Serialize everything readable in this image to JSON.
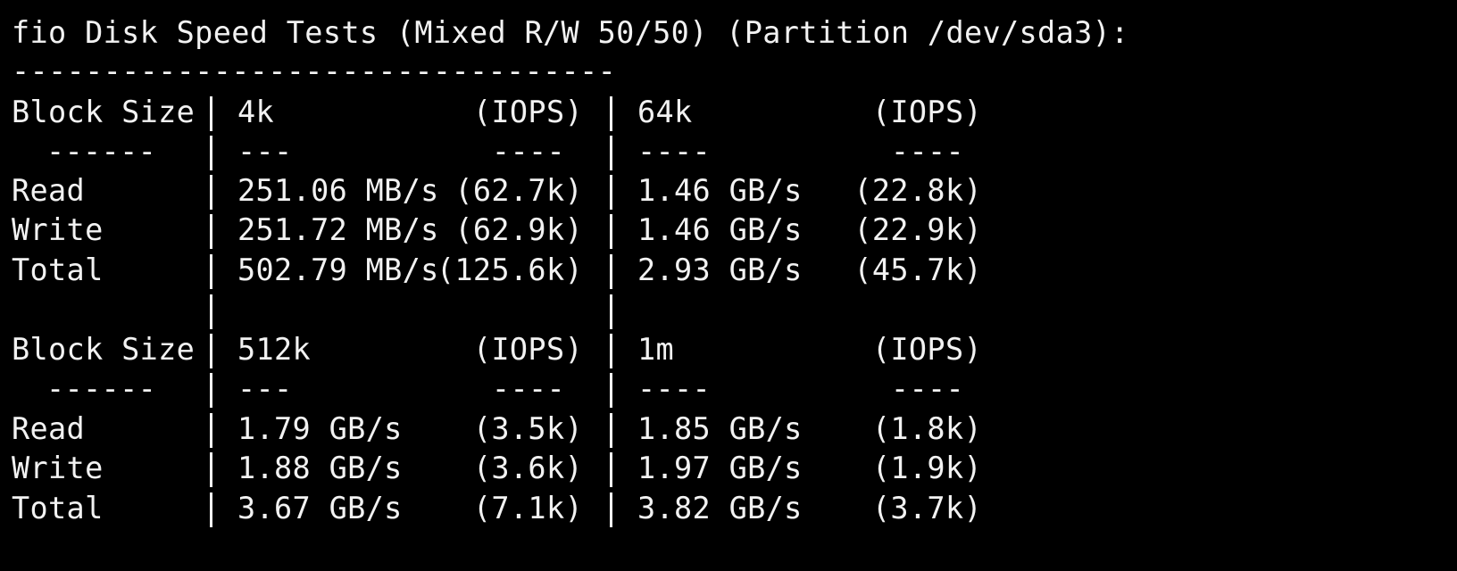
{
  "window": {
    "title_line": "fio Disk Speed Tests (Mixed R/W 50/50) (Partition /dev/sda3):",
    "rule": "---------------------------------"
  },
  "table1": {
    "header": {
      "label": "Block Size",
      "col1_size": "4k",
      "col1_iops": "(IOPS)",
      "col2_size": "64k",
      "col2_iops": "(IOPS)"
    },
    "dashes": {
      "label": "------",
      "col1_size": "---",
      "col1_iops": "----",
      "col2_size": "----",
      "col2_iops": "----"
    },
    "rows": [
      {
        "label": "Read",
        "speed1": "251.06 MB/s",
        "iops1": "(62.7k)",
        "speed2": "1.46 GB/s",
        "iops2": "(22.8k)"
      },
      {
        "label": "Write",
        "speed1": "251.72 MB/s",
        "iops1": "(62.9k)",
        "speed2": "1.46 GB/s",
        "iops2": "(22.9k)"
      },
      {
        "label": "Total",
        "speed1": "502.79 MB/s",
        "iops1": "(125.6k)",
        "speed2": "2.93 GB/s",
        "iops2": "(45.7k)"
      }
    ]
  },
  "table2": {
    "header": {
      "label": "Block Size",
      "col1_size": "512k",
      "col1_iops": "(IOPS)",
      "col2_size": "1m",
      "col2_iops": "(IOPS)"
    },
    "dashes": {
      "label": "------",
      "col1_size": "---",
      "col1_iops": "----",
      "col2_size": "----",
      "col2_iops": "----"
    },
    "rows": [
      {
        "label": "Read",
        "speed1": "1.79 GB/s",
        "iops1": "(3.5k)",
        "speed2": "1.85 GB/s",
        "iops2": "(1.8k)"
      },
      {
        "label": "Write",
        "speed1": "1.88 GB/s",
        "iops1": "(3.6k)",
        "speed2": "1.97 GB/s",
        "iops2": "(1.9k)"
      },
      {
        "label": "Total",
        "speed1": "3.67 GB/s",
        "iops1": "(7.1k)",
        "speed2": "3.82 GB/s",
        "iops2": "(3.7k)"
      }
    ]
  },
  "colors": {
    "background": "#000000",
    "text": "#f2f2f2"
  }
}
